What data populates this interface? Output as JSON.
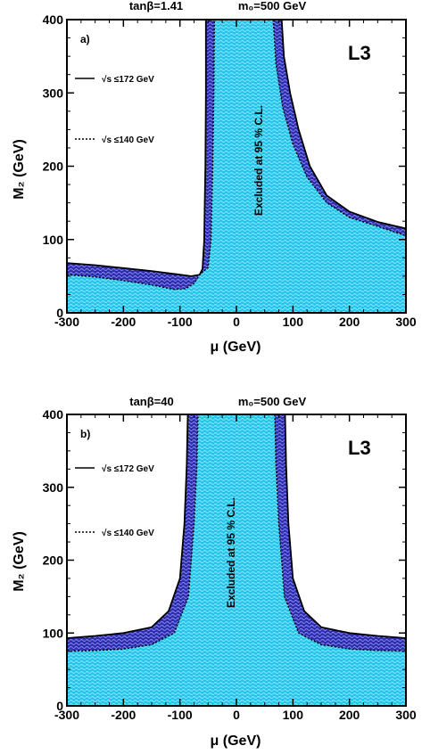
{
  "chart_data": [
    {
      "type": "area",
      "panel_label": "a)",
      "header_left": "tanβ=1.41",
      "header_right": "m₀=500 GeV",
      "experiment": "L3",
      "xlabel": "μ (GeV)",
      "ylabel": "M₂ (GeV)",
      "xlim": [
        -300,
        300
      ],
      "ylim": [
        0,
        400
      ],
      "xticks": [
        -300,
        -200,
        -100,
        0,
        100,
        200,
        300
      ],
      "yticks": [
        0,
        100,
        200,
        300,
        400
      ],
      "annotation": "Excluded at 95 % C.L.",
      "legend": [
        {
          "label": "√s ≤172 GeV",
          "style": "solid"
        },
        {
          "label": "√s ≤140 GeV",
          "style": "dotted"
        }
      ],
      "series": [
        {
          "name": "√s ≤172 GeV",
          "style": "solid",
          "left": [
            [
              -300,
              68
            ],
            [
              -250,
              65
            ],
            [
              -200,
              61
            ],
            [
              -150,
              57
            ],
            [
              -100,
              52
            ],
            [
              -80,
              50
            ],
            [
              -65,
              52
            ],
            [
              -60,
              60
            ],
            [
              -57,
              100
            ],
            [
              -56,
              150
            ],
            [
              -55,
              200
            ],
            [
              -54,
              300
            ],
            [
              -54,
              400
            ]
          ],
          "right": [
            [
              80,
              400
            ],
            [
              84,
              350
            ],
            [
              95,
              300
            ],
            [
              110,
              250
            ],
            [
              130,
              200
            ],
            [
              160,
              160
            ],
            [
              200,
              138
            ],
            [
              250,
              124
            ],
            [
              300,
              115
            ]
          ]
        },
        {
          "name": "√s ≤140 GeV",
          "style": "dotted",
          "left": [
            [
              -300,
              52
            ],
            [
              -250,
              49
            ],
            [
              -200,
              44
            ],
            [
              -150,
              38
            ],
            [
              -110,
              32
            ],
            [
              -90,
              33
            ],
            [
              -75,
              40
            ],
            [
              -65,
              52
            ],
            [
              -50,
              62
            ],
            [
              -45,
              100
            ],
            [
              -42,
              200
            ],
            [
              -40,
              300
            ],
            [
              -39,
              400
            ]
          ],
          "right": [
            [
              65,
              400
            ],
            [
              70,
              340
            ],
            [
              82,
              280
            ],
            [
              100,
              230
            ],
            [
              125,
              185
            ],
            [
              160,
              150
            ],
            [
              200,
              130
            ],
            [
              250,
              118
            ],
            [
              300,
              105
            ]
          ]
        }
      ]
    },
    {
      "type": "area",
      "panel_label": "b)",
      "header_left": "tanβ=40",
      "header_right": "m₀=500 GeV",
      "experiment": "L3",
      "xlabel": "μ (GeV)",
      "ylabel": "M₂ (GeV)",
      "xlim": [
        -300,
        300
      ],
      "ylim": [
        0,
        400
      ],
      "xticks": [
        -300,
        -200,
        -100,
        0,
        100,
        200,
        300
      ],
      "yticks": [
        0,
        100,
        200,
        300,
        400
      ],
      "annotation": "Excluded at 95 % C.L.",
      "legend": [
        {
          "label": "√s ≤172 GeV",
          "style": "solid"
        },
        {
          "label": "√s ≤140 GeV",
          "style": "dotted"
        }
      ],
      "series": [
        {
          "name": "√s ≤172 GeV",
          "style": "solid",
          "left": [
            [
              -300,
              93
            ],
            [
              -250,
              96
            ],
            [
              -200,
              100
            ],
            [
              -150,
              108
            ],
            [
              -120,
              130
            ],
            [
              -100,
              175
            ],
            [
              -92,
              250
            ],
            [
              -88,
              330
            ],
            [
              -86,
              400
            ]
          ],
          "right": [
            [
              86,
              400
            ],
            [
              88,
              330
            ],
            [
              92,
              250
            ],
            [
              100,
              175
            ],
            [
              120,
              130
            ],
            [
              150,
              108
            ],
            [
              200,
              100
            ],
            [
              250,
              96
            ],
            [
              300,
              93
            ]
          ]
        },
        {
          "name": "√s ≤140 GeV",
          "style": "dotted",
          "left": [
            [
              -300,
              75
            ],
            [
              -250,
              76
            ],
            [
              -200,
              78
            ],
            [
              -150,
              84
            ],
            [
              -110,
              100
            ],
            [
              -85,
              150
            ],
            [
              -75,
              250
            ],
            [
              -70,
              330
            ],
            [
              -68,
              400
            ]
          ],
          "right": [
            [
              68,
              400
            ],
            [
              70,
              330
            ],
            [
              75,
              250
            ],
            [
              85,
              150
            ],
            [
              110,
              100
            ],
            [
              150,
              84
            ],
            [
              200,
              78
            ],
            [
              250,
              76
            ],
            [
              300,
              75
            ]
          ]
        }
      ]
    }
  ]
}
